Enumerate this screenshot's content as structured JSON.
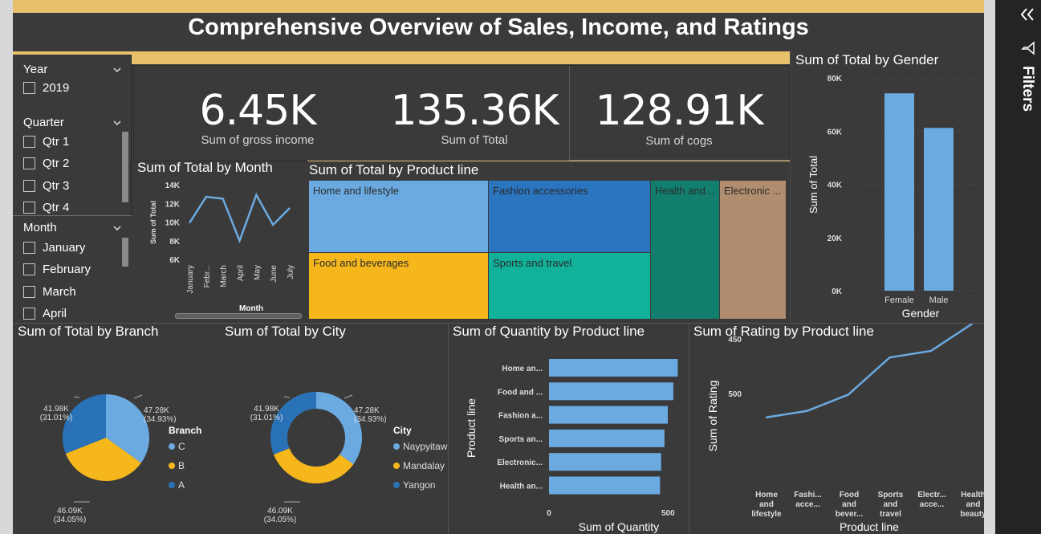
{
  "page_title": "Comprehensive Overview of Sales, Income, and Ratings",
  "filters_pane": {
    "label": "Filters",
    "collapse_icon": "double-chevron-right-icon",
    "filter_icon": "funnel-icon"
  },
  "slicers": {
    "year": {
      "title": "Year",
      "items": [
        "2019"
      ]
    },
    "quarter": {
      "title": "Quarter",
      "items": [
        "Qtr 1",
        "Qtr 2",
        "Qtr 3",
        "Qtr 4"
      ]
    },
    "month": {
      "title": "Month",
      "items": [
        "January",
        "February",
        "March",
        "April"
      ]
    }
  },
  "kpis": [
    {
      "value": "6.45K",
      "label": "Sum of gross income"
    },
    {
      "value": "135.36K",
      "label": "Sum of Total"
    },
    {
      "value": "128.91K",
      "label": "Sum of cogs"
    }
  ],
  "colors": {
    "bar": "#6aaae0",
    "gold": "#e6c06a",
    "bg": "#3a3a3a",
    "pie_c": "#6aaae0",
    "pie_b": "#f5b71b",
    "pie_a": "#2a72b8"
  },
  "chart_data": [
    {
      "id": "month",
      "type": "line",
      "title": "Sum of Total by Month",
      "xlabel": "Month",
      "ylabel": "Sum of Total",
      "categories": [
        "January",
        "Febr...",
        "March",
        "April",
        "May",
        "June",
        "July"
      ],
      "values": [
        9.9,
        12.7,
        12.5,
        8.0,
        12.9,
        9.7,
        11.5
      ],
      "yticks": [
        "14K",
        "12K",
        "10K",
        "8K",
        "6K"
      ],
      "ylim": [
        6,
        14
      ]
    },
    {
      "id": "product_treemap",
      "type": "treemap",
      "title": "Sum of Total by Product line",
      "labels": [
        "Home and lifestyle",
        "Food and beverages",
        "Fashion accessories",
        "Sports and travel",
        "Health and...",
        "Electronic ..."
      ]
    },
    {
      "id": "gender",
      "type": "bar",
      "title": "Sum of Total by Gender",
      "xlabel": "Gender",
      "ylabel": "Sum of Total",
      "categories": [
        "Female",
        "Male"
      ],
      "values": [
        74.2,
        61.2
      ],
      "yticks": [
        "80K",
        "60K",
        "40K",
        "20K",
        "0K"
      ],
      "ylim": [
        0,
        80
      ]
    },
    {
      "id": "branch",
      "type": "pie",
      "title": "Sum of Total by Branch",
      "legend_title": "Branch",
      "labels": [
        "C",
        "B",
        "A"
      ],
      "values": [
        47.28,
        46.09,
        41.98
      ],
      "value_labels": [
        "47.28K",
        "46.09K",
        "41.98K"
      ],
      "pct_labels": [
        "(34.93%)",
        "(34.05%)",
        "(31.01%)"
      ]
    },
    {
      "id": "city",
      "type": "pie",
      "title": "Sum of Total by City",
      "legend_title": "City",
      "labels": [
        "Naypyitaw",
        "Mandalay",
        "Yangon"
      ],
      "values": [
        47.28,
        46.09,
        41.98
      ],
      "value_labels": [
        "47.28K",
        "46.09K",
        "41.98K"
      ],
      "pct_labels": [
        "(34.93%)",
        "(34.05%)",
        "(31.01%)"
      ]
    },
    {
      "id": "quantity",
      "type": "bar",
      "orientation": "horizontal",
      "title": "Sum of Quantity by Product line",
      "xlabel": "Sum of Quantity",
      "ylabel": "Product line",
      "categories": [
        "Home an...",
        "Food and ...",
        "Fashion a...",
        "Sports an...",
        "Electronic...",
        "Health an..."
      ],
      "values": [
        580,
        560,
        535,
        520,
        505,
        500
      ],
      "xticks": [
        "0",
        "500"
      ],
      "xlim": [
        0,
        600
      ]
    },
    {
      "id": "rating",
      "type": "line",
      "title": "Sum of Rating by Product line",
      "xlabel": "Product line",
      "ylabel": "Sum of Rating",
      "categories": [
        "Home and lifestyle",
        "Fashi... acce...",
        "Food and bever...",
        "Sports and travel",
        "Electr... acce...",
        "Health and beauty"
      ],
      "values": [
        522,
        516,
        501,
        467,
        461,
        436
      ],
      "yticks": [
        "500",
        "450"
      ]
    }
  ]
}
